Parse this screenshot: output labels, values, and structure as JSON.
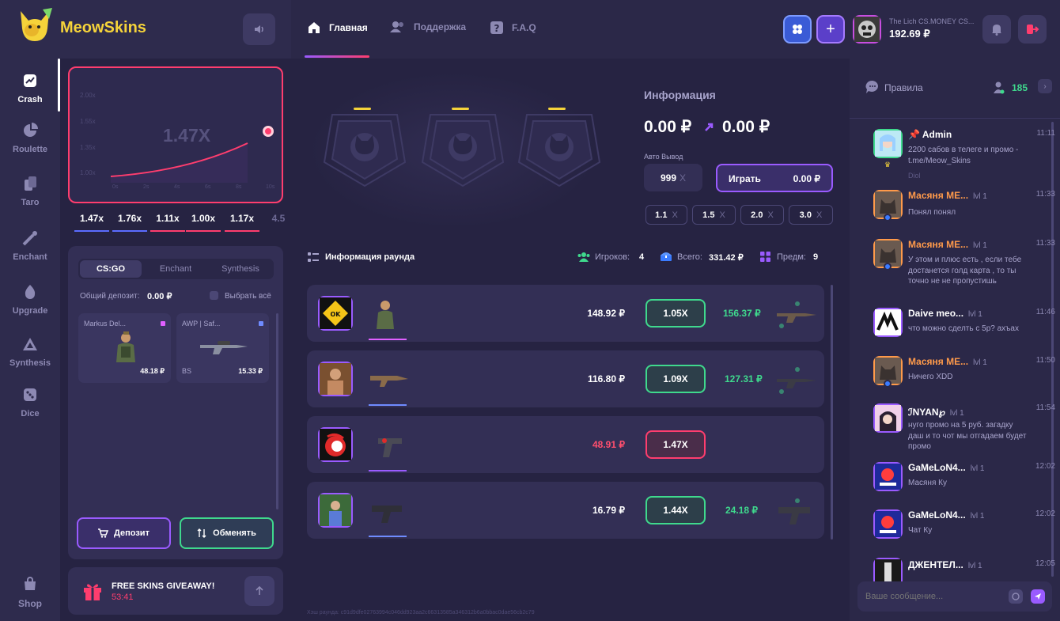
{
  "brand": {
    "name": "MeowSkins"
  },
  "nav": {
    "tabs": [
      {
        "label": "Главная"
      },
      {
        "label": "Поддержка"
      },
      {
        "label": "F.A.Q"
      }
    ]
  },
  "user": {
    "name": "The Lich CS.MONEY CS...",
    "balance": "192.69 ₽"
  },
  "sidebar": {
    "items": [
      {
        "label": "Crash"
      },
      {
        "label": "Roulette"
      },
      {
        "label": "Taro"
      },
      {
        "label": "Enchant"
      },
      {
        "label": "Upgrade"
      },
      {
        "label": "Synthesis"
      },
      {
        "label": "Dice"
      },
      {
        "label": "Shop"
      }
    ]
  },
  "crash_graph": {
    "multiplier": "1.47X",
    "y_ticks": [
      "2.00x",
      "1.55x",
      "1.35x",
      "1.00x"
    ],
    "x_ticks": [
      "0s",
      "2s",
      "4s",
      "6s",
      "8s",
      "10s"
    ]
  },
  "history": [
    "1.47x",
    "1.76x",
    "1.11x",
    "1.00x",
    "1.17x",
    "4.5"
  ],
  "inventory": {
    "tabs": [
      "CS:GO",
      "Enchant",
      "Synthesis"
    ],
    "deposit_label": "Общий депозит:",
    "deposit_value": "0.00 ₽",
    "select_all": "Выбрать всё",
    "items": [
      {
        "name": "Markus Del...",
        "tag": "",
        "price": "48.18 ₽"
      },
      {
        "name": "AWP | Saf...",
        "tag": "BS",
        "price": "15.33 ₽"
      }
    ],
    "deposit_btn": "Депозит",
    "exchange_btn": "Обменять"
  },
  "giveaway": {
    "title": "FREE SKINS GIVEAWAY!",
    "timer": "53:41"
  },
  "info": {
    "title": "Информация",
    "bet": "0.00 ₽",
    "win": "0.00 ₽",
    "auto_label": "Авто Вывод",
    "auto_value": "999",
    "auto_unit": "X",
    "play": "Играть",
    "play_amount": "0.00 ₽",
    "quick": [
      "1.1",
      "1.5",
      "2.0",
      "3.0"
    ],
    "quick_unit": "X"
  },
  "round": {
    "title": "Информация раунда",
    "players_label": "Игроков:",
    "players": "4",
    "total_label": "Всего:",
    "total": "331.42 ₽",
    "items_label": "Предм:",
    "items": "9",
    "bets": [
      {
        "amount": "148.92 ₽",
        "coef": "1.05X",
        "win": "156.37 ₽",
        "state": "win"
      },
      {
        "amount": "116.80 ₽",
        "coef": "1.09X",
        "win": "127.31 ₽",
        "state": "win"
      },
      {
        "amount": "48.91 ₽",
        "coef": "1.47X",
        "win": "",
        "state": "lose"
      },
      {
        "amount": "16.79 ₽",
        "coef": "1.44X",
        "win": "24.18 ₽",
        "state": "win"
      }
    ],
    "hash": "Хэш раунда: c91d9dfe02763994c046dd923aa2c66313585a346312b6a0bbac0dae56cb2c79"
  },
  "chat": {
    "title": "Правила",
    "online": "185",
    "placeholder": "Ваше сообщение...",
    "messages": [
      {
        "name": "Admin",
        "level": "",
        "time": "11:11",
        "text": "2200 сабов в телеге и промо - t.me/Meow_Skins",
        "extra": "Diol"
      },
      {
        "name": "Масяня МЕ...",
        "level": "lvl 1",
        "time": "11:33",
        "text": "Понял понял"
      },
      {
        "name": "Масяня МЕ...",
        "level": "lvl 1",
        "time": "11:33",
        "text": "У этом и плюс есть , если тебе достанется голд карта , то ты точно не не пропустишь"
      },
      {
        "name": "Daive meo...",
        "level": "lvl 1",
        "time": "11:46",
        "text": "что можно сделть с 5р? ахъах"
      },
      {
        "name": "Масяня МЕ...",
        "level": "lvl 1",
        "time": "11:50",
        "text": "Ничего XDD"
      },
      {
        "name": "ℐNYAN℘",
        "level": "lvl 1",
        "time": "11:54",
        "text": "нуго промо на 5 руб. загадку даш и то чот мы отгадаем будет промо"
      },
      {
        "name": "GaMeLoN4...",
        "level": "lvl 1",
        "time": "12:02",
        "text": "Масяня Ку"
      },
      {
        "name": "GaMeLoN4...",
        "level": "lvl 1",
        "time": "12:02",
        "text": "Чат Ку"
      },
      {
        "name": "ДЖЕНТЕЛ...",
        "level": "lvl 1",
        "time": "12:05",
        "text": ""
      }
    ]
  },
  "colors": {
    "bg": "#262342",
    "panel": "#332f55",
    "accent": "#9a5bff",
    "pink": "#ff3d6e",
    "green": "#3fd98d",
    "yellow": "#f5d33a"
  }
}
